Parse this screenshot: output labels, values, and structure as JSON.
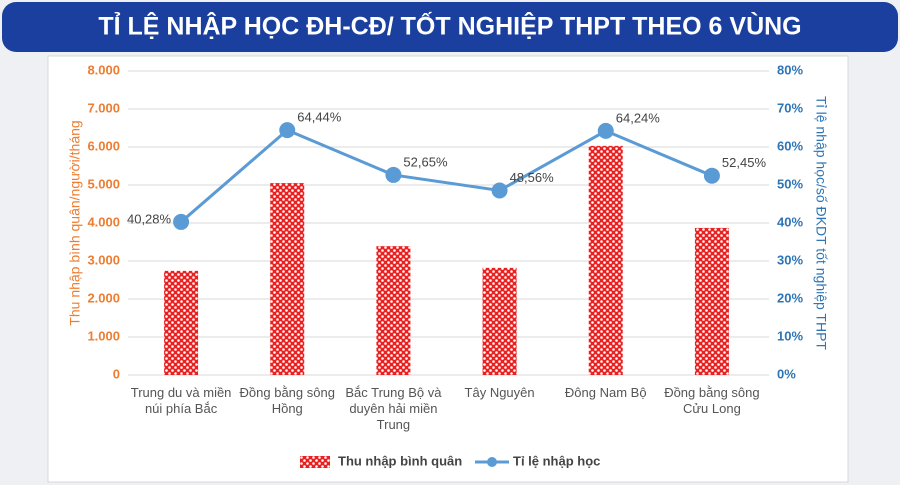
{
  "chart_data": {
    "type": "combo",
    "title": "TỈ LỆ NHẬP HỌC ĐH-CĐ/ TỐT NGHIỆP THPT THEO 6 VÙNG",
    "y_label": "Thu nhập bình quân/người/tháng",
    "y2_label": "Tỉ lệ nhập học/số ĐKDT tốt nghiệp THPT",
    "categories": [
      "Trung du và miền núi phía Bắc",
      "Đồng bằng sông Hồng",
      "Bắc Trung Bộ và duyên hải miền Trung",
      "Tây Nguyên",
      "Đông Nam Bộ",
      "Đồng bằng sông Cửu Long"
    ],
    "ylim": [
      0,
      8000
    ],
    "yticks": [
      {
        "value": 0,
        "label": "0"
      },
      {
        "value": 1000,
        "label": "1.000"
      },
      {
        "value": 2000,
        "label": "2.000"
      },
      {
        "value": 3000,
        "label": "3.000"
      },
      {
        "value": 4000,
        "label": "4.000"
      },
      {
        "value": 5000,
        "label": "5.000"
      },
      {
        "value": 6000,
        "label": "6.000"
      },
      {
        "value": 7000,
        "label": "7.000"
      },
      {
        "value": 8000,
        "label": "8.000"
      }
    ],
    "y2lim": [
      0,
      80
    ],
    "y2ticks": [
      {
        "value": 0,
        "label": "0%"
      },
      {
        "value": 10,
        "label": "10%"
      },
      {
        "value": 20,
        "label": "20%"
      },
      {
        "value": 30,
        "label": "30%"
      },
      {
        "value": 40,
        "label": "40%"
      },
      {
        "value": 50,
        "label": "50%"
      },
      {
        "value": 60,
        "label": "60%"
      },
      {
        "value": 70,
        "label": "70%"
      },
      {
        "value": 80,
        "label": "80%"
      }
    ],
    "grid": true,
    "legend": "bottom",
    "series": [
      {
        "name": "Thu nhập bình quân",
        "type": "bar",
        "color": "#e8201f",
        "values": [
          2740,
          5050,
          3390,
          2820,
          6030,
          3870
        ]
      },
      {
        "name": "Tỉ lệ nhập học",
        "type": "line",
        "axis": "y2",
        "color": "#5b9bd5",
        "values": [
          40.28,
          64.44,
          52.65,
          48.56,
          64.24,
          52.45
        ],
        "value_labels": [
          "40,28%",
          "64,44%",
          "52,65%",
          "48,56%",
          "64,24%",
          "52,45%"
        ]
      }
    ]
  }
}
